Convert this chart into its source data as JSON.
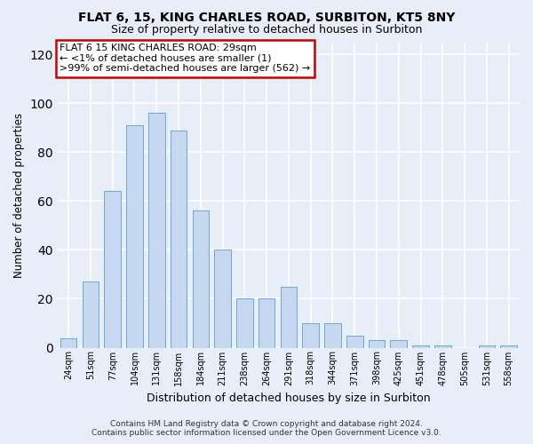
{
  "title": "FLAT 6, 15, KING CHARLES ROAD, SURBITON, KT5 8NY",
  "subtitle": "Size of property relative to detached houses in Surbiton",
  "xlabel": "Distribution of detached houses by size in Surbiton",
  "ylabel": "Number of detached properties",
  "bar_color": "#c5d8ef",
  "bar_edge_color": "#6aaad4",
  "categories": [
    "24sqm",
    "51sqm",
    "77sqm",
    "104sqm",
    "131sqm",
    "158sqm",
    "184sqm",
    "211sqm",
    "238sqm",
    "264sqm",
    "291sqm",
    "318sqm",
    "344sqm",
    "371sqm",
    "398sqm",
    "425sqm",
    "451sqm",
    "478sqm",
    "505sqm",
    "531sqm",
    "558sqm"
  ],
  "values": [
    4,
    27,
    64,
    91,
    96,
    89,
    56,
    40,
    20,
    20,
    25,
    10,
    10,
    5,
    3,
    3,
    1,
    1,
    0,
    1,
    1
  ],
  "ylim": [
    0,
    125
  ],
  "yticks": [
    0,
    20,
    40,
    60,
    80,
    100,
    120
  ],
  "annotation_box_text": "FLAT 6 15 KING CHARLES ROAD: 29sqm\n← <1% of detached houses are smaller (1)\n>99% of semi-detached houses are larger (562) →",
  "footer_line1": "Contains HM Land Registry data © Crown copyright and database right 2024.",
  "footer_line2": "Contains public sector information licensed under the Open Government Licence v3.0.",
  "background_color": "#e8eef7",
  "grid_color": "#ffffff",
  "box_color_face": "#ffffff",
  "box_color_edge": "#cc0000"
}
